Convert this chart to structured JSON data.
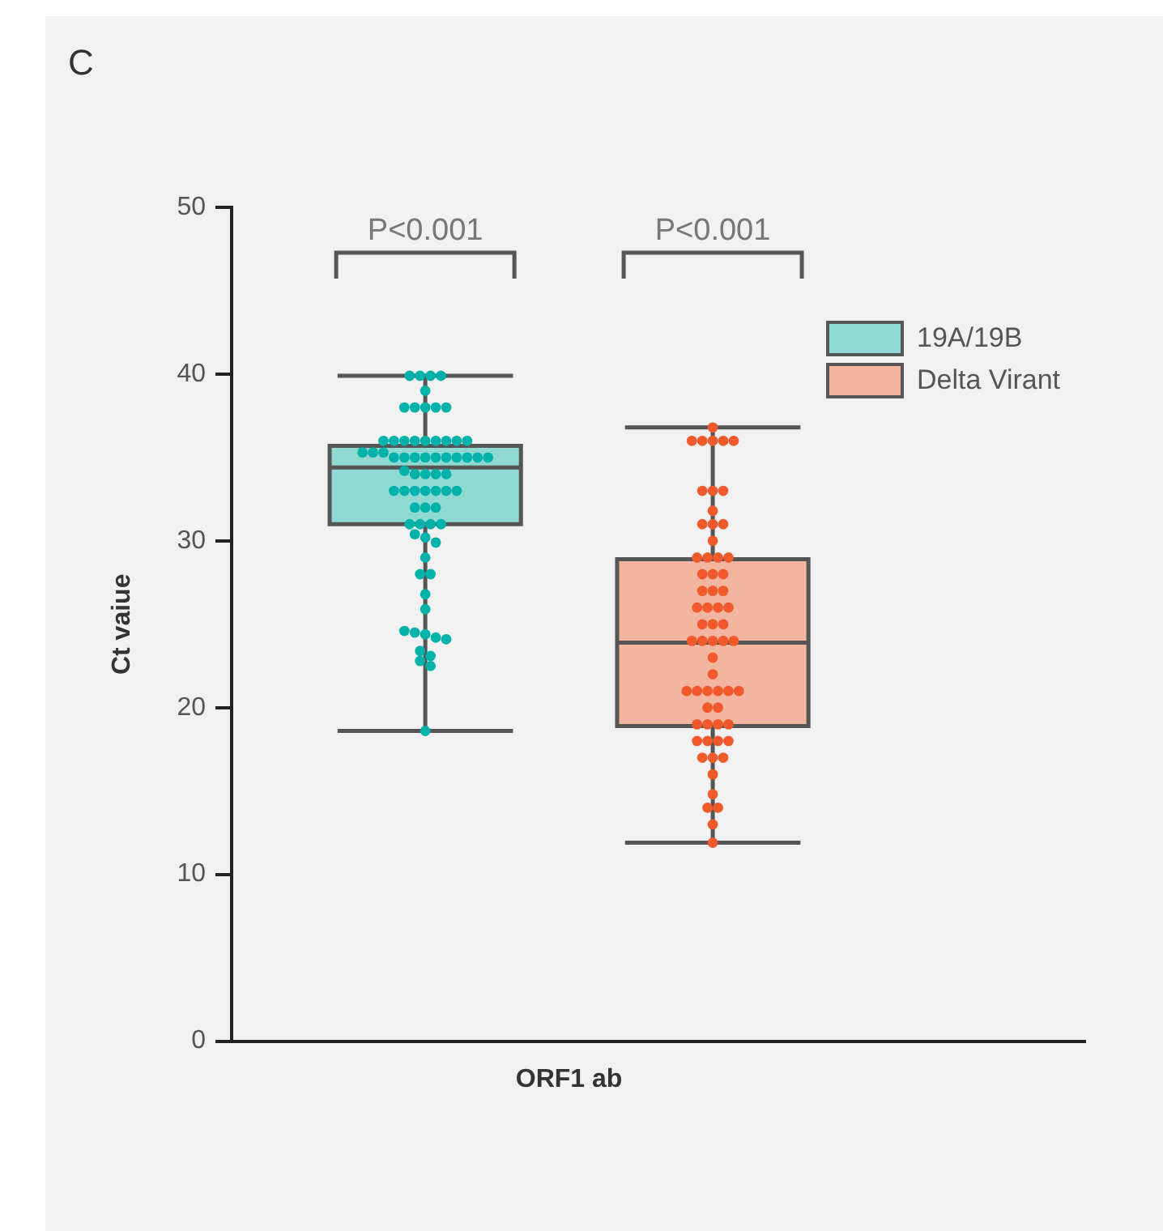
{
  "chart_data": {
    "type": "box",
    "title": "C",
    "ylabel": "Ct vaiue",
    "categories": [
      "ORF1 ab"
    ],
    "ylim": [
      0,
      50
    ],
    "yticks": [
      0,
      10,
      20,
      30,
      40,
      50
    ],
    "grid": false,
    "legend": "top right",
    "annotations": [
      "P<0.001",
      "P<0.001"
    ],
    "series": [
      {
        "type": "box",
        "name": "19A/19B",
        "color": "#8fd9d3",
        "boxes": [
          {
            "low": 18.6,
            "q1": 31,
            "median": 34.4,
            "q3": 35.7,
            "high": 39.9
          }
        ]
      },
      {
        "type": "box",
        "name": "Delta Virant",
        "color": "#f2b5a0",
        "boxes": [
          {
            "low": 11.9,
            "q1": 18.9,
            "median": 23.9,
            "q3": 28.9,
            "high": 36.8
          }
        ]
      },
      {
        "type": "scatter",
        "color": "#00b2a9",
        "x": [
          "ORF1 ab",
          "ORF1 ab",
          "ORF1 ab",
          "ORF1 ab",
          "ORF1 ab",
          "ORF1 ab",
          "ORF1 ab",
          "ORF1 ab",
          "ORF1 ab",
          "ORF1 ab",
          "ORF1 ab",
          "ORF1 ab",
          "ORF1 ab",
          "ORF1 ab",
          "ORF1 ab",
          "ORF1 ab",
          "ORF1 ab",
          "ORF1 ab",
          "ORF1 ab",
          "ORF1 ab",
          "ORF1 ab",
          "ORF1 ab",
          "ORF1 ab",
          "ORF1 ab",
          "ORF1 ab",
          "ORF1 ab",
          "ORF1 ab",
          "ORF1 ab",
          "ORF1 ab",
          "ORF1 ab",
          "ORF1 ab",
          "ORF1 ab",
          "ORF1 ab",
          "ORF1 ab",
          "ORF1 ab",
          "ORF1 ab",
          "ORF1 ab",
          "ORF1 ab",
          "ORF1 ab",
          "ORF1 ab",
          "ORF1 ab",
          "ORF1 ab",
          "ORF1 ab",
          "ORF1 ab",
          "ORF1 ab",
          "ORF1 ab",
          "ORF1 ab",
          "ORF1 ab",
          "ORF1 ab",
          "ORF1 ab",
          "ORF1 ab",
          "ORF1 ab",
          "ORF1 ab",
          "ORF1 ab",
          "ORF1 ab",
          "ORF1 ab",
          "ORF1 ab",
          "ORF1 ab",
          "ORF1 ab",
          "ORF1 ab",
          "ORF1 ab",
          "ORF1 ab",
          "ORF1 ab",
          "ORF1 ab",
          "ORF1 ab",
          "ORF1 ab",
          "ORF1 ab",
          "ORF1 ab",
          "ORF1 ab"
        ],
        "values": [
          39.9,
          39.9,
          39.9,
          39.9,
          39,
          38,
          38,
          38,
          38,
          38,
          36,
          36,
          36,
          36,
          36,
          36,
          36,
          36,
          36,
          35.3,
          35.3,
          35.3,
          35,
          35,
          35,
          35,
          35,
          35,
          35,
          35,
          35,
          35,
          34.2,
          34,
          34,
          34,
          34,
          33,
          33,
          33,
          33,
          33,
          33,
          33,
          32,
          32,
          32,
          31,
          31,
          31,
          31,
          30.4,
          30.2,
          29.9,
          29,
          28,
          28,
          26.8,
          25.9,
          24.6,
          24.4,
          24.2,
          24.1,
          24.5,
          23.4,
          23.1,
          22.8,
          22.5,
          18.6
        ]
      },
      {
        "type": "scatter",
        "color": "#f0592b",
        "x": [
          "ORF1 ab",
          "ORF1 ab",
          "ORF1 ab",
          "ORF1 ab",
          "ORF1 ab",
          "ORF1 ab",
          "ORF1 ab",
          "ORF1 ab",
          "ORF1 ab",
          "ORF1 ab",
          "ORF1 ab",
          "ORF1 ab",
          "ORF1 ab",
          "ORF1 ab",
          "ORF1 ab",
          "ORF1 ab",
          "ORF1 ab",
          "ORF1 ab",
          "ORF1 ab",
          "ORF1 ab",
          "ORF1 ab",
          "ORF1 ab",
          "ORF1 ab",
          "ORF1 ab",
          "ORF1 ab",
          "ORF1 ab",
          "ORF1 ab",
          "ORF1 ab",
          "ORF1 ab",
          "ORF1 ab",
          "ORF1 ab",
          "ORF1 ab",
          "ORF1 ab",
          "ORF1 ab",
          "ORF1 ab",
          "ORF1 ab",
          "ORF1 ab",
          "ORF1 ab",
          "ORF1 ab",
          "ORF1 ab",
          "ORF1 ab",
          "ORF1 ab",
          "ORF1 ab",
          "ORF1 ab",
          "ORF1 ab",
          "ORF1 ab",
          "ORF1 ab",
          "ORF1 ab",
          "ORF1 ab",
          "ORF1 ab",
          "ORF1 ab",
          "ORF1 ab",
          "ORF1 ab",
          "ORF1 ab",
          "ORF1 ab",
          "ORF1 ab",
          "ORF1 ab",
          "ORF1 ab",
          "ORF1 ab",
          "ORF1 ab",
          "ORF1 ab",
          "ORF1 ab",
          "ORF1 ab"
        ],
        "values": [
          36.8,
          36,
          36,
          36,
          36,
          36,
          33,
          33,
          33,
          31.8,
          31,
          31,
          31,
          30,
          29,
          29,
          29,
          29,
          28,
          28,
          28,
          27,
          27,
          27,
          26,
          26,
          26,
          26,
          25,
          25,
          25,
          24,
          24,
          24,
          24,
          24,
          23,
          22,
          21,
          21,
          21,
          21,
          21,
          21,
          20,
          20,
          19,
          19,
          19,
          19,
          18,
          18,
          18,
          18,
          17,
          17,
          17,
          16,
          14.8,
          14,
          14,
          13,
          11.9
        ]
      }
    ]
  }
}
